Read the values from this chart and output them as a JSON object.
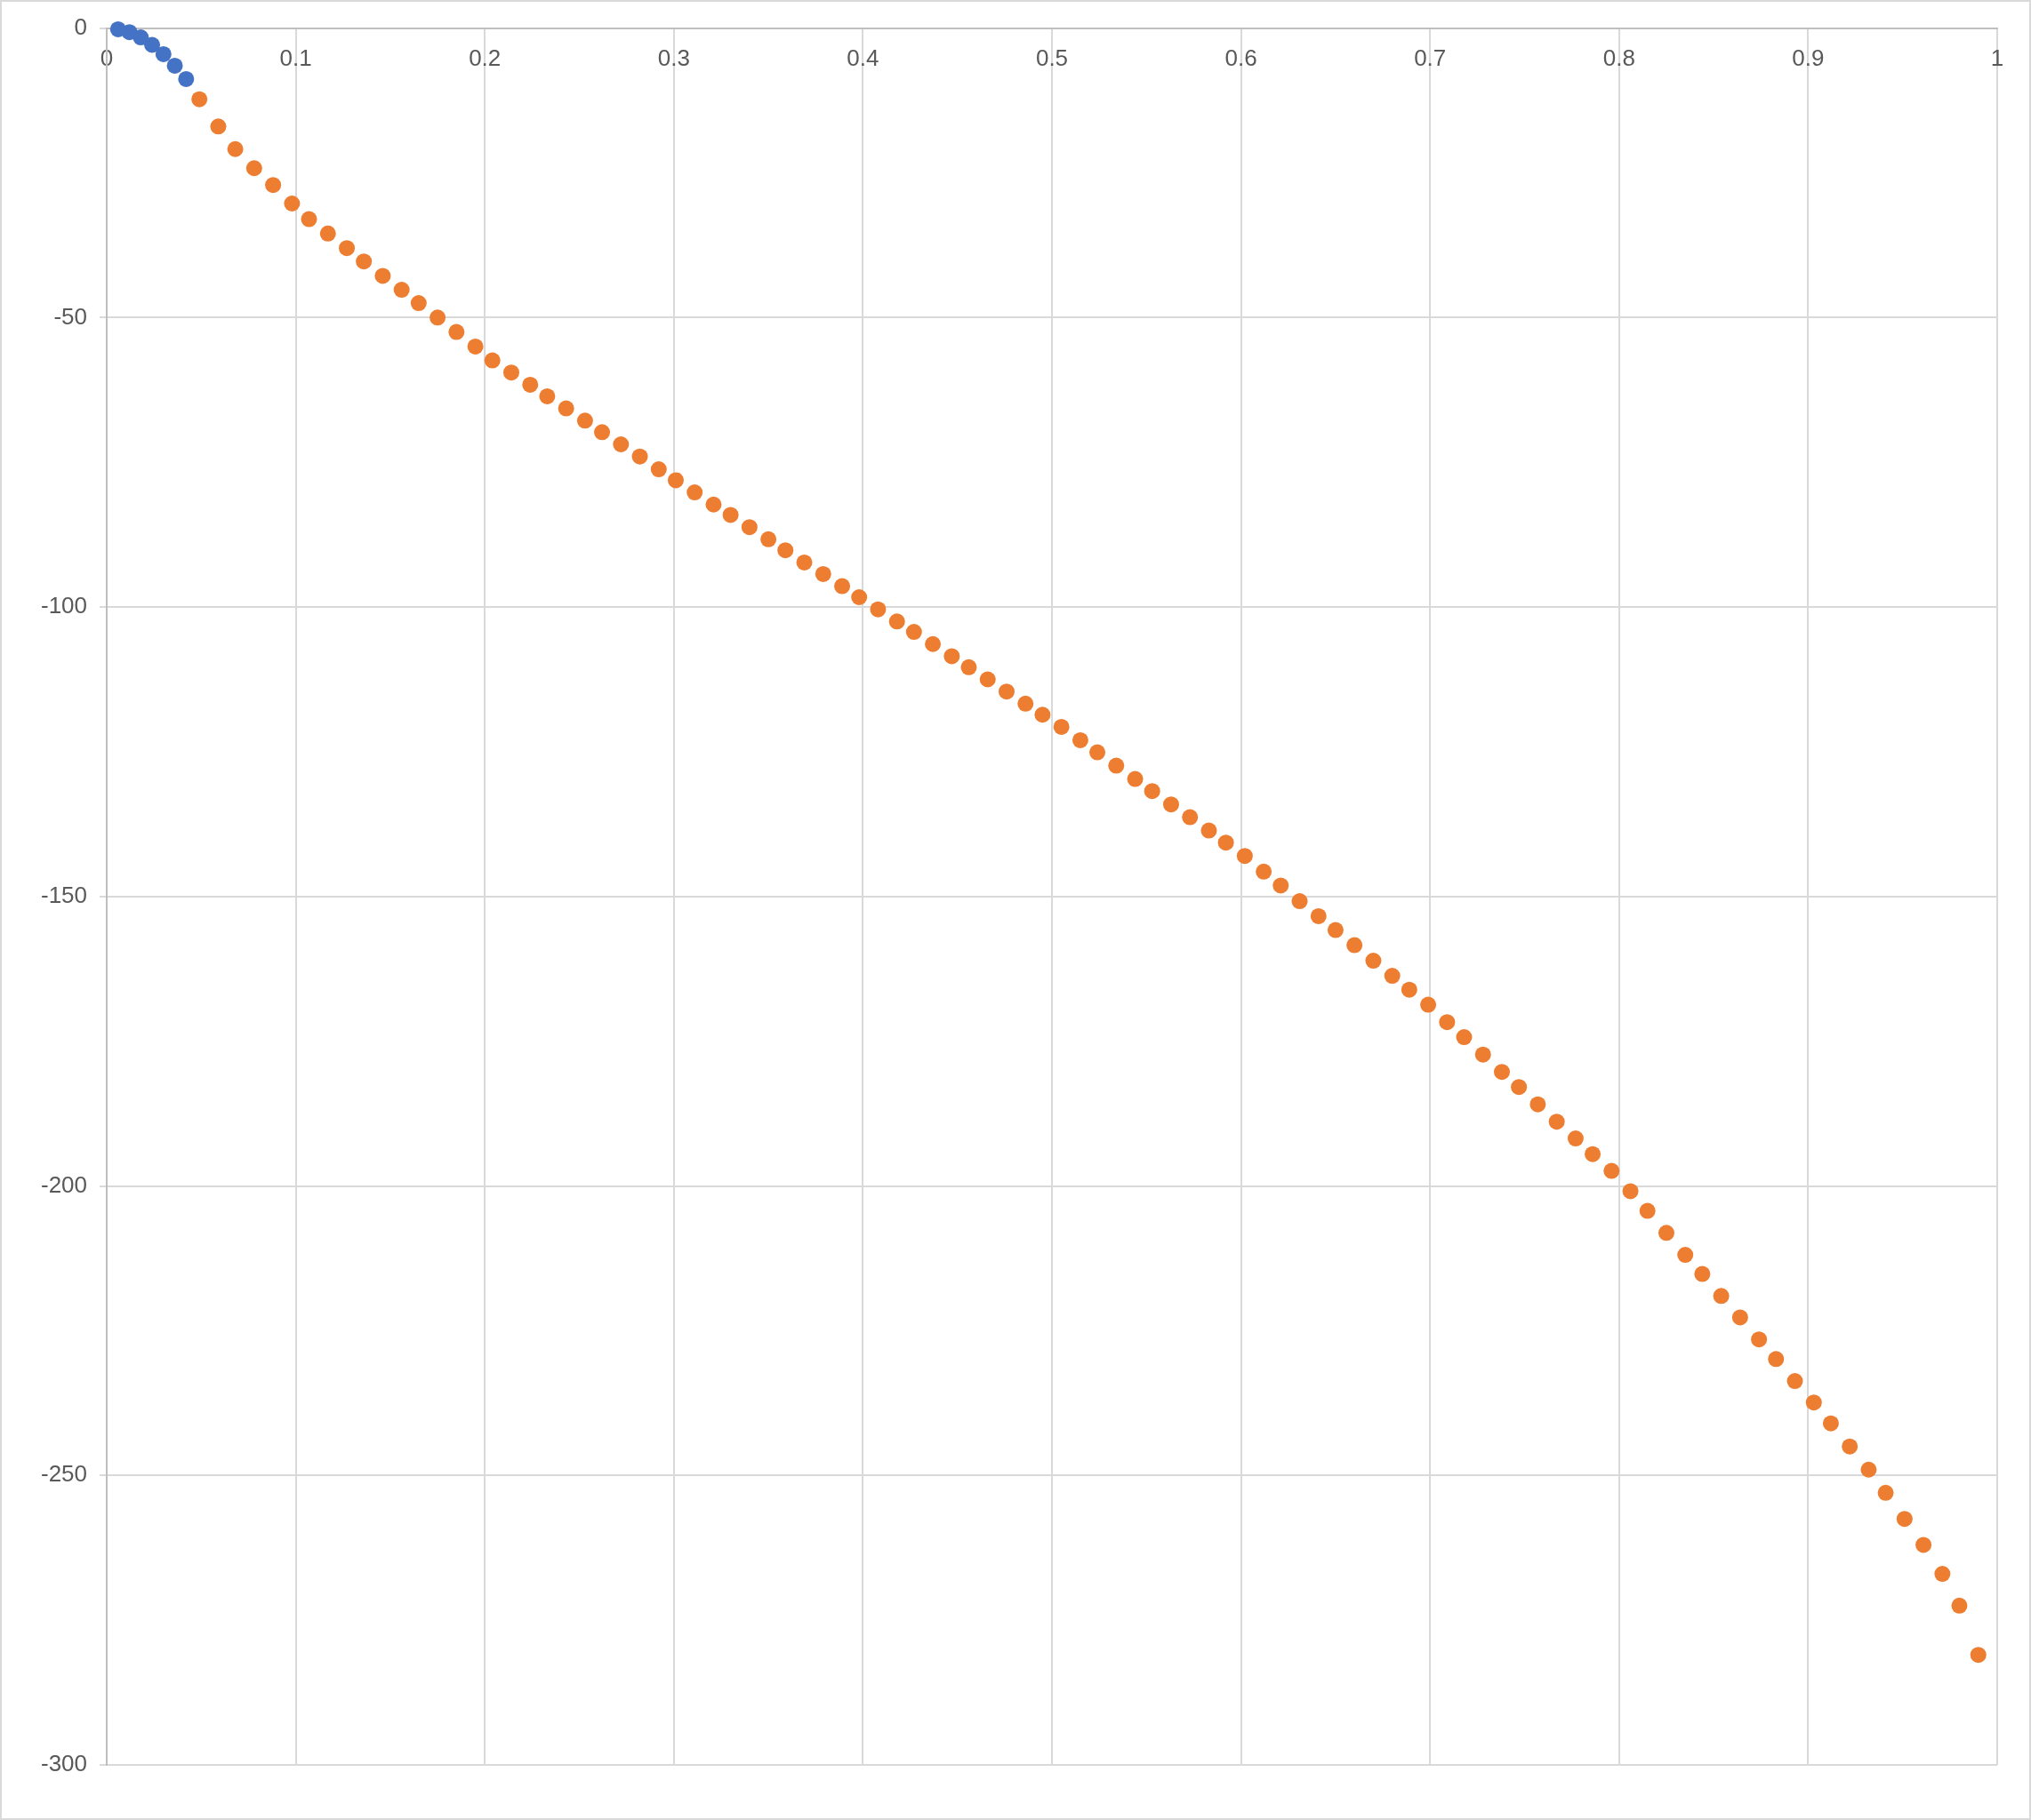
{
  "chart_data": {
    "type": "scatter",
    "xlim": [
      0,
      1
    ],
    "ylim": [
      -300,
      0
    ],
    "xticks": [
      0,
      0.1,
      0.2,
      0.3,
      0.4,
      0.5,
      0.6,
      0.7,
      0.8,
      0.9,
      1
    ],
    "yticks": [
      -300,
      -250,
      -200,
      -150,
      -100,
      -50,
      0
    ],
    "grid": true,
    "legend": false,
    "marker": "circle",
    "series": [
      {
        "color": "#4472c4",
        "x": [
          0.006,
          0.012,
          0.018,
          0.024,
          0.03,
          0.036,
          0.042
        ],
        "values": [
          -0.2,
          -0.7,
          -1.6,
          -2.9,
          -4.5,
          -6.5,
          -8.8
        ]
      },
      {
        "color": "#ed7d31",
        "x": [
          0.049,
          0.059,
          0.068,
          0.078,
          0.088,
          0.098,
          0.107,
          0.117,
          0.127,
          0.136,
          0.146,
          0.156,
          0.165,
          0.175,
          0.185,
          0.195,
          0.204,
          0.214,
          0.224,
          0.233,
          0.243,
          0.253,
          0.262,
          0.272,
          0.282,
          0.292,
          0.301,
          0.311,
          0.321,
          0.33,
          0.34,
          0.35,
          0.359,
          0.369,
          0.379,
          0.389,
          0.398,
          0.408,
          0.418,
          0.427,
          0.437,
          0.447,
          0.456,
          0.466,
          0.476,
          0.486,
          0.495,
          0.505,
          0.515,
          0.524,
          0.534,
          0.544,
          0.553,
          0.563,
          0.573,
          0.583,
          0.592,
          0.602,
          0.612,
          0.621,
          0.631,
          0.641,
          0.65,
          0.66,
          0.67,
          0.68,
          0.689,
          0.699,
          0.709,
          0.718,
          0.728,
          0.738,
          0.747,
          0.757,
          0.767,
          0.777,
          0.786,
          0.796,
          0.806,
          0.815,
          0.825,
          0.835,
          0.844,
          0.854,
          0.864,
          0.874,
          0.883,
          0.893,
          0.903,
          0.912,
          0.922,
          0.932,
          0.941,
          0.951,
          0.961,
          0.971,
          0.98,
          0.99
        ],
        "values": [
          -12.3,
          -17,
          -20.9,
          -24.2,
          -27.1,
          -30.3,
          -33,
          -35.5,
          -38,
          -40.3,
          -42.8,
          -45.2,
          -47.5,
          -50,
          -52.5,
          -55,
          -57.4,
          -59.5,
          -61.6,
          -63.6,
          -65.7,
          -67.8,
          -69.8,
          -71.9,
          -74,
          -76.2,
          -78.1,
          -80.2,
          -82.3,
          -84.1,
          -86.2,
          -88.3,
          -90.2,
          -92.3,
          -94.3,
          -96.4,
          -98.3,
          -100.4,
          -102.5,
          -104.3,
          -106.4,
          -108.5,
          -110.4,
          -112.5,
          -114.6,
          -116.7,
          -118.6,
          -120.7,
          -123,
          -125.1,
          -127.4,
          -129.7,
          -131.8,
          -134.1,
          -136.3,
          -138.6,
          -140.7,
          -143,
          -145.7,
          -148.1,
          -150.8,
          -153.4,
          -155.8,
          -158.4,
          -161.1,
          -163.7,
          -166.1,
          -168.7,
          -171.7,
          -174.3,
          -177.3,
          -180.3,
          -182.9,
          -185.9,
          -188.9,
          -191.8,
          -194.5,
          -197.4,
          -200.9,
          -204.3,
          -208.1,
          -211.9,
          -215.2,
          -219,
          -222.7,
          -226.5,
          -229.9,
          -233.7,
          -237.4,
          -241,
          -245,
          -249,
          -253,
          -257.5,
          -262,
          -267,
          -272.5,
          -281
        ]
      }
    ]
  }
}
